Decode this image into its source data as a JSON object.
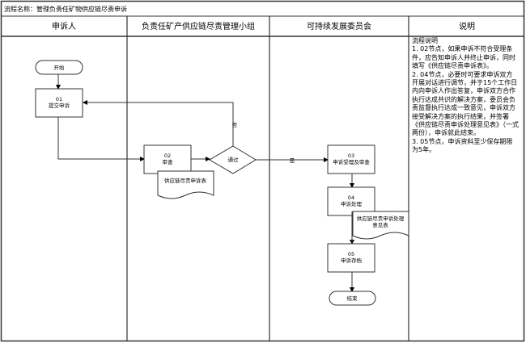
{
  "title": "流程名称：管理负责任矿物供应链尽责申诉",
  "lanes": [
    "申诉人",
    "负责任矿产供应链尽责管理小组",
    "可持续发展委员会",
    "说明"
  ],
  "nodes": {
    "start": "开始",
    "n01_id": "01",
    "n01_label": "提交申诉",
    "n02_id": "02",
    "n02_label": "审查",
    "decision": "通过",
    "no": "否",
    "yes": "是",
    "doc1": "供应链尽责申诉表",
    "n03_id": "03",
    "n03_label": "申诉受理及审查",
    "n04_id": "04",
    "n04_label": "申诉处理",
    "doc2_line1": "供应链尽责申诉处理",
    "doc2_line2": "意见表",
    "n05_id": "05",
    "n05_label": "申诉存档",
    "end": "结束"
  },
  "notes": "流程说明\n1. 02节点，如果申诉不符合受理条件，应告知申诉人并终止申诉，同时填写《供应链尽责申诉表》。\n2. 04节点，必要时可要求申诉双方开展对话进行调节，并于15个工作日内向申诉人作出答复，申诉双方合作执行达成共识的解决方案，委员会负责监督执行达成一致意见，申诉双方接受解决方案的执行结果，并签署《供应链尽责申诉处理意见表》（一式两份），申诉就此结束。\n3. 05节点，申诉资料至少保存期限为5年。"
}
